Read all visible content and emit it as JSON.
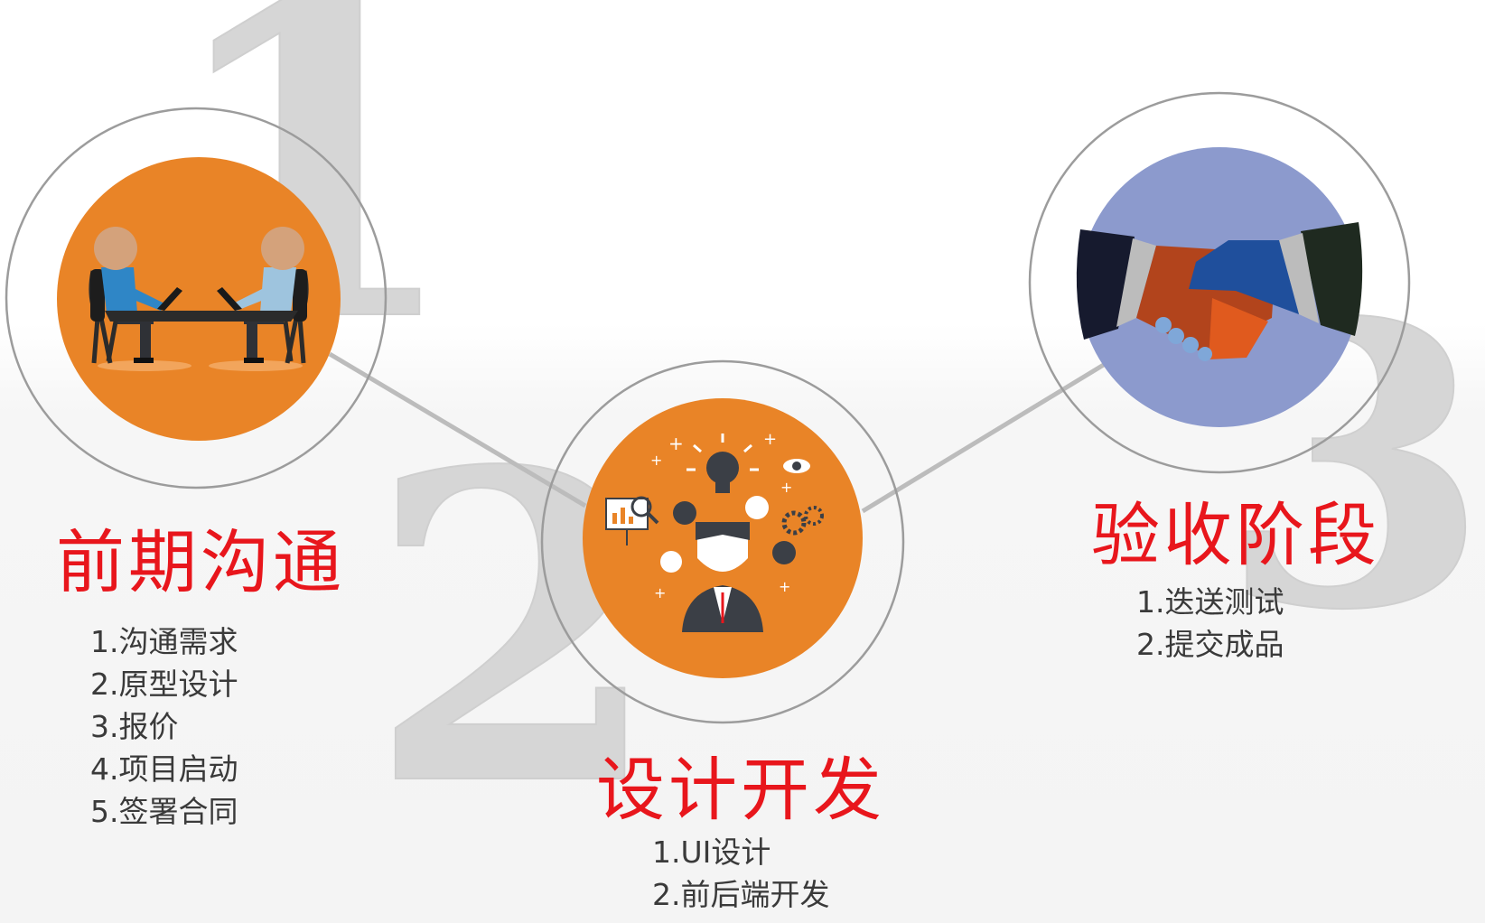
{
  "stages": [
    {
      "number": "1",
      "title": "前期沟通",
      "steps": [
        "1.沟通需求",
        "2.原型设计",
        "3.报价",
        "4.项目启动",
        "5.签署合同"
      ],
      "icon": "meeting-icon",
      "color": "#e98427"
    },
    {
      "number": "2",
      "title": "设计开发",
      "steps": [
        "1.UI设计",
        "2.前后端开发"
      ],
      "icon": "ideas-icon",
      "color": "#e98427"
    },
    {
      "number": "3",
      "title": "验收阶段",
      "steps": [
        "1.迭送测试",
        "2.提交成品"
      ],
      "icon": "handshake-icon",
      "color": "#8c9acd"
    }
  ],
  "colors": {
    "title": "#e8161c",
    "text": "#3a3a3a",
    "ring": "#9a9a9a",
    "connector": "#bcbcbc",
    "numeral": "#d4d4d4"
  }
}
